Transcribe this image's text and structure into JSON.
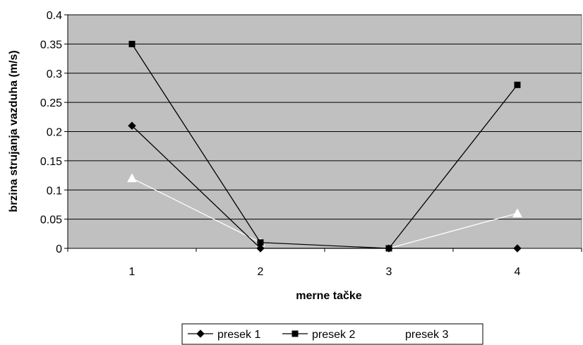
{
  "chart_data": {
    "type": "line",
    "categories": [
      "1",
      "2",
      "3",
      "4"
    ],
    "xlabel": "merne tačke",
    "ylabel": "brzina strujanja vazduha (m/s)",
    "ylim": [
      0,
      0.4
    ],
    "yticks": [
      0,
      0.05,
      0.1,
      0.15,
      0.2,
      0.25,
      0.3,
      0.35,
      0.4
    ],
    "ytick_labels": [
      "0",
      "0.05",
      "0.1",
      "0.15",
      "0.2",
      "0.25",
      "0.3",
      "0.35",
      "0.4"
    ],
    "grid": true,
    "legend_position": "bottom",
    "plot_background": "#c0c0c0",
    "series": [
      {
        "name": "presek 1",
        "values": [
          0.21,
          0,
          0,
          0
        ],
        "color": "#000000",
        "marker": "diamond"
      },
      {
        "name": "presek 2",
        "values": [
          0.35,
          0.01,
          0,
          0.28
        ],
        "color": "#000000",
        "marker": "square"
      },
      {
        "name": "presek 3",
        "values": [
          0.12,
          0.01,
          0,
          0.06
        ],
        "color": "#ffffff",
        "marker": "triangle"
      }
    ]
  }
}
